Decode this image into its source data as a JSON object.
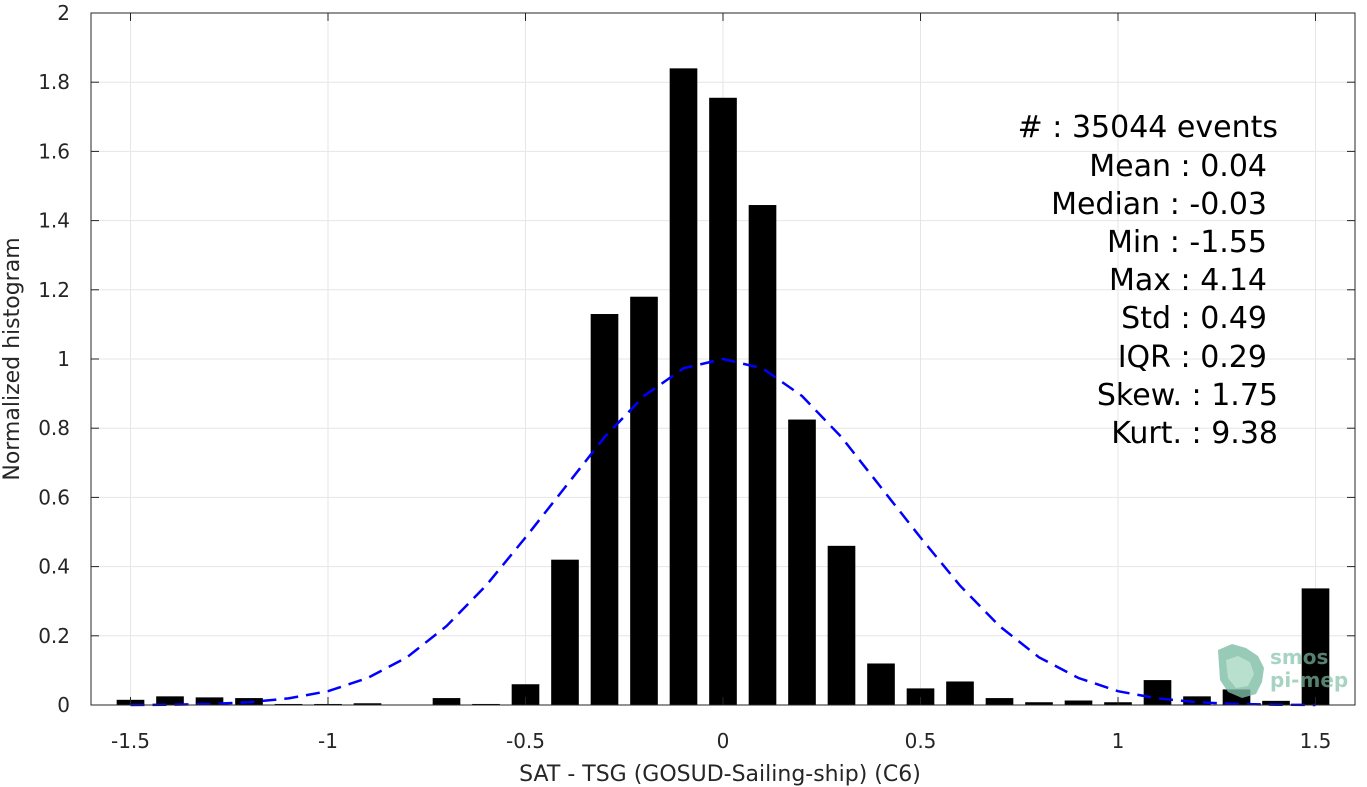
{
  "chart_data": {
    "type": "bar",
    "xlabel": "SAT - TSG (GOSUD-Sailing-ship) (C6)",
    "ylabel": "Normalized histogram",
    "xlim": [
      -1.6,
      1.6
    ],
    "ylim": [
      0,
      2
    ],
    "xticks": [
      -1.5,
      -1,
      -0.5,
      0,
      0.5,
      1,
      1.5
    ],
    "xtick_labels": [
      "-1.5",
      "-1",
      "-0.5",
      "0",
      "0.5",
      "1",
      "1.5"
    ],
    "yticks": [
      0,
      0.2,
      0.4,
      0.6,
      0.8,
      1,
      1.2,
      1.4,
      1.6,
      1.8,
      2
    ],
    "ytick_labels": [
      "0",
      "0.2",
      "0.4",
      "0.6",
      "0.8",
      "1",
      "1.2",
      "1.4",
      "1.6",
      "1.8",
      "2"
    ],
    "grid": true,
    "bar_width": 0.07,
    "bar_color": "#000000",
    "series": [
      {
        "x": [
          -1.5,
          -1.4,
          -1.3,
          -1.2,
          -1.1,
          -1.0,
          -0.9,
          -0.8,
          -0.7,
          -0.6,
          -0.5,
          -0.4,
          -0.3,
          -0.2,
          -0.1,
          0.0,
          0.1,
          0.2,
          0.3,
          0.4,
          0.5,
          0.6,
          0.7,
          0.8,
          0.9,
          1.0,
          1.1,
          1.2,
          1.3,
          1.4,
          1.5
        ],
        "values": [
          0.015,
          0.025,
          0.022,
          0.02,
          0.003,
          0.003,
          0.005,
          0.0,
          0.02,
          0.003,
          0.06,
          0.42,
          1.13,
          1.18,
          1.84,
          1.755,
          1.445,
          0.825,
          0.46,
          0.12,
          0.048,
          0.068,
          0.02,
          0.008,
          0.013,
          0.008,
          0.072,
          0.025,
          0.045,
          0.012,
          0.337
        ]
      },
      {
        "type": "line",
        "style": "dashed",
        "color": "#0000ff",
        "x": [
          -1.5,
          -1.4,
          -1.3,
          -1.2,
          -1.1,
          -1.0,
          -0.9,
          -0.8,
          -0.7,
          -0.6,
          -0.5,
          -0.4,
          -0.3,
          -0.2,
          -0.1,
          0.0,
          0.1,
          0.2,
          0.3,
          0.4,
          0.5,
          0.6,
          0.7,
          0.8,
          0.9,
          1.0,
          1.1,
          1.2,
          1.3,
          1.4,
          1.5
        ],
        "values": [
          0.0,
          0.001,
          0.003,
          0.008,
          0.019,
          0.04,
          0.078,
          0.138,
          0.228,
          0.345,
          0.484,
          0.629,
          0.774,
          0.893,
          0.973,
          1.0,
          0.973,
          0.893,
          0.774,
          0.629,
          0.484,
          0.345,
          0.228,
          0.138,
          0.078,
          0.04,
          0.019,
          0.008,
          0.003,
          0.001,
          0.0
        ]
      }
    ],
    "annotations": [
      "#  : 35044 events",
      "Mean : 0.04",
      "Median : -0.03",
      "Min : -1.55",
      "Max : 4.14",
      "Std : 0.49",
      "IQR : 0.29",
      "Skew. : 1.75",
      "Kurt. : 9.38"
    ]
  },
  "logo": {
    "text_line1": "smos",
    "text_line2": "pi-mep",
    "color": "#7fbfa6"
  }
}
